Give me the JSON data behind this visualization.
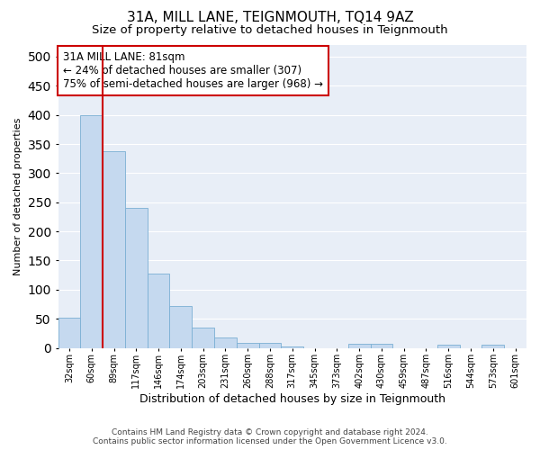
{
  "title": "31A, MILL LANE, TEIGNMOUTH, TQ14 9AZ",
  "subtitle": "Size of property relative to detached houses in Teignmouth",
  "xlabel": "Distribution of detached houses by size in Teignmouth",
  "ylabel": "Number of detached properties",
  "footer_line1": "Contains HM Land Registry data © Crown copyright and database right 2024.",
  "footer_line2": "Contains public sector information licensed under the Open Government Licence v3.0.",
  "bin_labels": [
    "32sqm",
    "60sqm",
    "89sqm",
    "117sqm",
    "146sqm",
    "174sqm",
    "203sqm",
    "231sqm",
    "260sqm",
    "288sqm",
    "317sqm",
    "345sqm",
    "373sqm",
    "402sqm",
    "430sqm",
    "459sqm",
    "487sqm",
    "516sqm",
    "544sqm",
    "573sqm",
    "601sqm"
  ],
  "bar_values": [
    52,
    400,
    338,
    240,
    128,
    72,
    35,
    18,
    8,
    8,
    2,
    0,
    0,
    7,
    7,
    0,
    0,
    5,
    0,
    5,
    0
  ],
  "bar_color": "#c5d9ef",
  "bar_edge_color": "#7aafd4",
  "background_color": "#e8eef7",
  "fig_background": "#ffffff",
  "annotation_line1": "31A MILL LANE: 81sqm",
  "annotation_line2": "← 24% of detached houses are smaller (307)",
  "annotation_line3": "75% of semi-detached houses are larger (968) →",
  "red_line_color": "#cc0000",
  "red_line_x": 2.0,
  "ylim": [
    0,
    520
  ],
  "yticks": [
    0,
    50,
    100,
    150,
    200,
    250,
    300,
    350,
    400,
    450,
    500
  ],
  "grid_color": "#ffffff",
  "title_fontsize": 11,
  "subtitle_fontsize": 9.5,
  "annotation_fontsize": 8.5,
  "ylabel_fontsize": 8,
  "xlabel_fontsize": 9
}
